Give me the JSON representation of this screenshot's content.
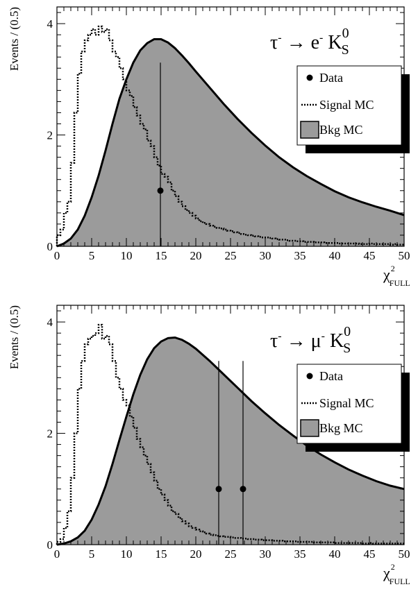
{
  "colors": {
    "background": "#ffffff",
    "bkg_fill": "#9b9b9b",
    "ink": "#000000"
  },
  "chart_data": [
    {
      "type": "area",
      "title": "τ⁻ → e⁻ K_S^0",
      "title_parts": {
        "particle": "τ",
        "arrow": "→",
        "lepton": "e",
        "meson": "K",
        "meson_sub": "S",
        "meson_sup": "0",
        "minus": "-"
      },
      "xlabel": "χ²_FULL",
      "xlabel_parts": {
        "main": "χ",
        "sup": "2",
        "sub": "FULL"
      },
      "ylabel": "Events / (0.5)",
      "xlim": [
        0,
        50
      ],
      "ylim": [
        0,
        4.3
      ],
      "x_ticks": [
        "0",
        "5",
        "10",
        "15",
        "20",
        "25",
        "30",
        "35",
        "40",
        "45",
        "50"
      ],
      "y_ticks": [
        "0",
        "2",
        "4"
      ],
      "grid": false,
      "legend_position": "top-right",
      "legend": [
        "Data",
        "Signal MC",
        "Bkg MC"
      ],
      "series": [
        {
          "name": "Data",
          "style": "points",
          "x": [
            14.9
          ],
          "y": [
            1.0
          ],
          "yerr_high": [
            3.3
          ]
        },
        {
          "name": "Signal MC",
          "style": "dotted-histogram",
          "bin_width": 0.5,
          "x": [
            0,
            0.5,
            1,
            1.5,
            2,
            2.5,
            3,
            3.5,
            4,
            4.5,
            5,
            5.5,
            6,
            6.5,
            7,
            7.5,
            8,
            8.5,
            9,
            9.5,
            10,
            10.5,
            11,
            11.5,
            12,
            12.5,
            13,
            13.5,
            14,
            14.5,
            15,
            15.5,
            16,
            16.5,
            17,
            17.5,
            18,
            18.5,
            19,
            19.5,
            20,
            20.5,
            21,
            21.5,
            22,
            22.5,
            23,
            23.5,
            24,
            24.5,
            25,
            25.5,
            26,
            26.5,
            27,
            27.5,
            28,
            28.5,
            29,
            29.5,
            30,
            30.5,
            31,
            31.5,
            32,
            32.5,
            33,
            33.5,
            34,
            34.5,
            35,
            35.5,
            36,
            36.5,
            37,
            37.5,
            38,
            38.5,
            39,
            39.5,
            40,
            40.5,
            41,
            41.5,
            42,
            42.5,
            43,
            43.5,
            44,
            44.5,
            45,
            45.5,
            46,
            46.5,
            47,
            47.5,
            48,
            48.5,
            49,
            49.5
          ],
          "values": [
            0.2,
            0.3,
            0.6,
            0.8,
            1.5,
            2.4,
            3.1,
            3.5,
            3.7,
            3.8,
            3.9,
            3.8,
            3.95,
            3.85,
            3.9,
            3.7,
            3.5,
            3.4,
            3.2,
            3.0,
            2.8,
            2.7,
            2.5,
            2.35,
            2.2,
            2.1,
            1.9,
            1.8,
            1.6,
            1.45,
            1.3,
            1.25,
            1.15,
            1.0,
            0.9,
            0.8,
            0.72,
            0.65,
            0.6,
            0.55,
            0.5,
            0.45,
            0.42,
            0.4,
            0.37,
            0.35,
            0.33,
            0.32,
            0.3,
            0.28,
            0.27,
            0.25,
            0.24,
            0.22,
            0.21,
            0.2,
            0.19,
            0.18,
            0.17,
            0.16,
            0.16,
            0.15,
            0.14,
            0.13,
            0.12,
            0.12,
            0.11,
            0.1,
            0.1,
            0.09,
            0.09,
            0.08,
            0.08,
            0.08,
            0.07,
            0.07,
            0.07,
            0.06,
            0.06,
            0.06,
            0.06,
            0.05,
            0.05,
            0.05,
            0.05,
            0.05,
            0.05,
            0.04,
            0.04,
            0.04,
            0.05,
            0.04,
            0.04,
            0.04,
            0.04,
            0.04,
            0.03,
            0.04,
            0.03,
            0.03
          ]
        },
        {
          "name": "Bkg MC",
          "style": "filled-curve",
          "x": [
            0,
            1,
            2,
            3,
            4,
            5,
            6,
            7,
            8,
            9,
            10,
            11,
            12,
            13,
            14,
            15,
            16,
            17,
            18,
            19,
            20,
            22,
            24,
            26,
            28,
            30,
            32,
            34,
            36,
            38,
            40,
            42,
            44,
            46,
            48,
            50
          ],
          "y": [
            0,
            0.05,
            0.14,
            0.3,
            0.55,
            0.88,
            1.27,
            1.72,
            2.2,
            2.65,
            3.0,
            3.3,
            3.52,
            3.65,
            3.72,
            3.72,
            3.66,
            3.56,
            3.43,
            3.29,
            3.14,
            2.85,
            2.56,
            2.29,
            2.04,
            1.81,
            1.6,
            1.42,
            1.26,
            1.12,
            0.99,
            0.88,
            0.79,
            0.71,
            0.64,
            0.56
          ]
        }
      ]
    },
    {
      "type": "area",
      "title": "τ⁻ → μ⁻ K_S^0",
      "title_parts": {
        "particle": "τ",
        "arrow": "→",
        "lepton": "μ",
        "meson": "K",
        "meson_sub": "S",
        "meson_sup": "0",
        "minus": "-"
      },
      "xlabel": "χ²_FULL",
      "xlabel_parts": {
        "main": "χ",
        "sup": "2",
        "sub": "FULL"
      },
      "ylabel": "Events / (0.5)",
      "xlim": [
        0,
        50
      ],
      "ylim": [
        0,
        4.3
      ],
      "x_ticks": [
        "0",
        "5",
        "10",
        "15",
        "20",
        "25",
        "30",
        "35",
        "40",
        "45",
        "50"
      ],
      "y_ticks": [
        "0",
        "2",
        "4"
      ],
      "grid": false,
      "legend_position": "top-right",
      "legend": [
        "Data",
        "Signal MC",
        "Bkg MC"
      ],
      "series": [
        {
          "name": "Data",
          "style": "points",
          "x": [
            23.3,
            26.8
          ],
          "y": [
            1.0,
            1.0
          ],
          "yerr_high": [
            3.3,
            3.3
          ]
        },
        {
          "name": "Signal MC",
          "style": "dotted-histogram",
          "bin_width": 0.5,
          "x": [
            0,
            0.5,
            1,
            1.5,
            2,
            2.5,
            3,
            3.5,
            4,
            4.5,
            5,
            5.5,
            6,
            6.5,
            7,
            7.5,
            8,
            8.5,
            9,
            9.5,
            10,
            10.5,
            11,
            11.5,
            12,
            12.5,
            13,
            13.5,
            14,
            14.5,
            15,
            15.5,
            16,
            16.5,
            17,
            17.5,
            18,
            18.5,
            19,
            19.5,
            20,
            20.5,
            21,
            21.5,
            22,
            22.5,
            23,
            23.5,
            24,
            24.5,
            25,
            25.5,
            26,
            26.5,
            27,
            27.5,
            28,
            28.5,
            29,
            29.5,
            30,
            30.5,
            31,
            31.5,
            32,
            32.5,
            33,
            33.5,
            34,
            34.5,
            35,
            35.5,
            36,
            36.5,
            37,
            37.5,
            38,
            38.5,
            39,
            39.5,
            40,
            40.5,
            41,
            41.5,
            42,
            42.5,
            43,
            43.5,
            44,
            44.5,
            45,
            45.5,
            46,
            46.5,
            47,
            47.5,
            48,
            48.5,
            49,
            49.5
          ],
          "values": [
            0.05,
            0.1,
            0.3,
            0.6,
            1.2,
            2.0,
            2.8,
            3.3,
            3.6,
            3.7,
            3.75,
            3.8,
            3.95,
            3.7,
            3.75,
            3.6,
            3.3,
            3.0,
            2.8,
            2.6,
            2.5,
            2.3,
            2.1,
            1.9,
            1.75,
            1.6,
            1.45,
            1.3,
            1.15,
            1.0,
            0.9,
            0.8,
            0.7,
            0.6,
            0.55,
            0.48,
            0.42,
            0.38,
            0.33,
            0.3,
            0.27,
            0.24,
            0.22,
            0.2,
            0.18,
            0.17,
            0.16,
            0.15,
            0.14,
            0.14,
            0.13,
            0.12,
            0.12,
            0.11,
            0.11,
            0.1,
            0.1,
            0.09,
            0.09,
            0.08,
            0.08,
            0.08,
            0.07,
            0.07,
            0.07,
            0.06,
            0.06,
            0.06,
            0.06,
            0.05,
            0.05,
            0.05,
            0.05,
            0.05,
            0.04,
            0.04,
            0.04,
            0.04,
            0.04,
            0.04,
            0.03,
            0.03,
            0.03,
            0.03,
            0.03,
            0.03,
            0.03,
            0.03,
            0.02,
            0.02,
            0.03,
            0.02,
            0.02,
            0.02,
            0.02,
            0.02,
            0.02,
            0.02,
            0.02,
            0.02
          ]
        },
        {
          "name": "Bkg MC",
          "style": "filled-curve",
          "x": [
            0,
            1,
            2,
            3,
            4,
            5,
            6,
            7,
            8,
            9,
            10,
            11,
            12,
            13,
            14,
            15,
            16,
            17,
            18,
            19,
            20,
            22,
            24,
            26,
            28,
            30,
            32,
            34,
            36,
            38,
            40,
            42,
            44,
            46,
            48,
            50
          ],
          "y": [
            0,
            0.02,
            0.06,
            0.13,
            0.25,
            0.45,
            0.72,
            1.05,
            1.45,
            1.88,
            2.3,
            2.7,
            3.05,
            3.33,
            3.53,
            3.65,
            3.71,
            3.72,
            3.68,
            3.61,
            3.52,
            3.3,
            3.06,
            2.82,
            2.58,
            2.36,
            2.15,
            1.96,
            1.78,
            1.62,
            1.48,
            1.35,
            1.24,
            1.14,
            1.06,
            1.0
          ]
        }
      ]
    }
  ]
}
